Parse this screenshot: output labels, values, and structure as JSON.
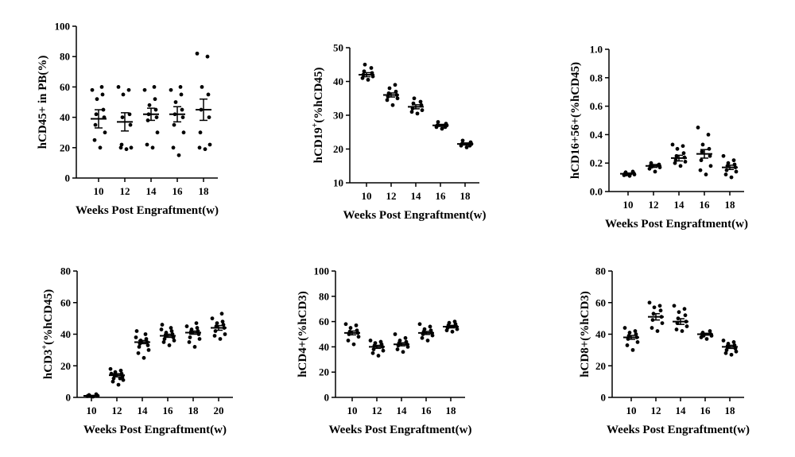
{
  "chart_data": [
    {
      "type": "scatter",
      "ylabel": "hCD45+ in PB(%)",
      "xlabel": "Weeks Post Engraftment(w)",
      "ylim": [
        0,
        100
      ],
      "yticks": [
        0,
        20,
        40,
        60,
        80,
        100
      ],
      "categories": [
        "10",
        "12",
        "14",
        "16",
        "18"
      ],
      "groups": [
        {
          "category": "10",
          "mean": 39,
          "sem": 6,
          "points": [
            20,
            25,
            30,
            35,
            40,
            42,
            45,
            52,
            55,
            58,
            60
          ]
        },
        {
          "category": "12",
          "mean": 37,
          "sem": 6,
          "points": [
            19,
            20,
            20,
            22,
            35,
            40,
            42,
            55,
            58,
            60
          ]
        },
        {
          "category": "14",
          "mean": 42,
          "sem": 4,
          "points": [
            20,
            22,
            30,
            38,
            40,
            42,
            45,
            48,
            52,
            58,
            60
          ]
        },
        {
          "category": "16",
          "mean": 42,
          "sem": 5,
          "points": [
            15,
            20,
            30,
            35,
            40,
            42,
            45,
            50,
            55,
            58,
            60
          ]
        },
        {
          "category": "18",
          "mean": 45,
          "sem": 7,
          "points": [
            19,
            20,
            22,
            30,
            40,
            45,
            55,
            60,
            80,
            82
          ]
        }
      ]
    },
    {
      "type": "scatter",
      "ylabel_main": "hCD19",
      "ylabel_sup": "+",
      "ylabel_rest": "(%hCD45)",
      "xlabel": "Weeks Post Engraftment(w)",
      "ylim": [
        10,
        50
      ],
      "yticks": [
        10,
        20,
        30,
        40,
        50
      ],
      "categories": [
        "10",
        "12",
        "14",
        "16",
        "18"
      ],
      "groups": [
        {
          "category": "10",
          "mean": 42,
          "sem": 0.6,
          "points": [
            40.5,
            41,
            41.5,
            42,
            42.5,
            43,
            44,
            45
          ]
        },
        {
          "category": "12",
          "mean": 36,
          "sem": 0.6,
          "points": [
            33,
            34.5,
            35,
            35.5,
            36,
            36.5,
            37,
            38,
            39
          ]
        },
        {
          "category": "14",
          "mean": 32.5,
          "sem": 0.6,
          "points": [
            30.5,
            31,
            31.5,
            32,
            33,
            33.5,
            34,
            35
          ]
        },
        {
          "category": "16",
          "mean": 27,
          "sem": 0.3,
          "points": [
            26,
            26.5,
            27,
            27,
            27.5,
            28,
            26.5
          ]
        },
        {
          "category": "18",
          "mean": 21.5,
          "sem": 0.3,
          "points": [
            20.5,
            21,
            21.5,
            21.5,
            22,
            22.5,
            21
          ]
        }
      ]
    },
    {
      "type": "scatter",
      "ylabel": "hCD16+56+(%hCD45)",
      "xlabel": "Weeks Post Engraftment(w)",
      "ylim": [
        0,
        1.0
      ],
      "yticks": [
        0.0,
        0.2,
        0.4,
        0.6,
        0.8,
        1.0
      ],
      "ytick_labels": [
        "0.0",
        "0.2",
        "0.4",
        "0.6",
        "0.8",
        "1.0"
      ],
      "categories": [
        "10",
        "12",
        "14",
        "16",
        "18"
      ],
      "groups": [
        {
          "category": "10",
          "mean": 0.125,
          "sem": 0.005,
          "points": [
            0.11,
            0.115,
            0.12,
            0.125,
            0.13,
            0.135,
            0.14,
            0.12
          ]
        },
        {
          "category": "12",
          "mean": 0.18,
          "sem": 0.01,
          "points": [
            0.14,
            0.16,
            0.17,
            0.18,
            0.19,
            0.2,
            0.185,
            0.175
          ]
        },
        {
          "category": "14",
          "mean": 0.235,
          "sem": 0.02,
          "points": [
            0.18,
            0.2,
            0.21,
            0.22,
            0.24,
            0.25,
            0.27,
            0.3,
            0.32,
            0.33
          ]
        },
        {
          "category": "16",
          "mean": 0.265,
          "sem": 0.03,
          "points": [
            0.12,
            0.15,
            0.18,
            0.22,
            0.25,
            0.28,
            0.3,
            0.33,
            0.4,
            0.45
          ]
        },
        {
          "category": "18",
          "mean": 0.17,
          "sem": 0.015,
          "points": [
            0.1,
            0.12,
            0.14,
            0.15,
            0.17,
            0.18,
            0.19,
            0.2,
            0.22,
            0.25
          ]
        }
      ]
    },
    {
      "type": "scatter",
      "ylabel_main": "hCD3",
      "ylabel_sup": "+",
      "ylabel_rest": "(%hCD45)",
      "xlabel": "Weeks Post Engraftment(w)",
      "ylim": [
        0,
        80
      ],
      "yticks": [
        0,
        20,
        40,
        60,
        80
      ],
      "categories": [
        "10",
        "12",
        "14",
        "16",
        "18",
        "20"
      ],
      "groups": [
        {
          "category": "10",
          "mean": 1,
          "sem": 0.2,
          "points": [
            0.5,
            0.8,
            1,
            1,
            1.2,
            1.5,
            2,
            1
          ]
        },
        {
          "category": "12",
          "mean": 14,
          "sem": 1,
          "points": [
            8,
            10,
            11,
            12,
            13,
            14,
            15,
            16,
            17,
            18,
            12,
            15
          ]
        },
        {
          "category": "14",
          "mean": 35,
          "sem": 1,
          "points": [
            25,
            28,
            30,
            32,
            33,
            34,
            35,
            36,
            37,
            38,
            40,
            42
          ]
        },
        {
          "category": "16",
          "mean": 39,
          "sem": 1,
          "points": [
            33,
            35,
            36,
            37,
            38,
            39,
            40,
            41,
            42,
            43,
            44,
            46
          ]
        },
        {
          "category": "18",
          "mean": 41,
          "sem": 1,
          "points": [
            32,
            35,
            37,
            38,
            40,
            41,
            42,
            43,
            44,
            45,
            47
          ]
        },
        {
          "category": "20",
          "mean": 44,
          "sem": 1.5,
          "points": [
            37,
            39,
            40,
            42,
            44,
            45,
            46,
            47,
            48,
            50,
            53
          ]
        }
      ]
    },
    {
      "type": "scatter",
      "ylabel": "hCD4+(%hCD3)",
      "xlabel": "Weeks Post Engraftment(w)",
      "ylim": [
        0,
        100
      ],
      "yticks": [
        0,
        20,
        40,
        60,
        80,
        100
      ],
      "categories": [
        "10",
        "12",
        "14",
        "16",
        "18"
      ],
      "groups": [
        {
          "category": "10",
          "mean": 51,
          "sem": 1.5,
          "points": [
            42,
            45,
            48,
            50,
            51,
            52,
            53,
            55,
            57,
            58
          ]
        },
        {
          "category": "12",
          "mean": 40,
          "sem": 1.2,
          "points": [
            33,
            35,
            37,
            38,
            40,
            41,
            42,
            43,
            44,
            45
          ]
        },
        {
          "category": "14",
          "mean": 42,
          "sem": 1.2,
          "points": [
            36,
            38,
            40,
            41,
            42,
            43,
            44,
            45,
            47,
            50
          ]
        },
        {
          "category": "16",
          "mean": 51,
          "sem": 1.2,
          "points": [
            45,
            47,
            49,
            50,
            51,
            52,
            53,
            54,
            56,
            58
          ]
        },
        {
          "category": "18",
          "mean": 56,
          "sem": 1,
          "points": [
            52,
            53,
            54,
            55,
            56,
            57,
            58,
            59,
            60
          ]
        }
      ]
    },
    {
      "type": "scatter",
      "ylabel": "hCD8+(%hCD3)",
      "xlabel": "Weeks Post Engraftment(w)",
      "ylim": [
        0,
        80
      ],
      "yticks": [
        0,
        20,
        40,
        60,
        80
      ],
      "categories": [
        "10",
        "12",
        "14",
        "16",
        "18"
      ],
      "groups": [
        {
          "category": "10",
          "mean": 38,
          "sem": 1.2,
          "points": [
            30,
            33,
            35,
            37,
            38,
            39,
            40,
            41,
            42,
            44
          ]
        },
        {
          "category": "12",
          "mean": 51,
          "sem": 2,
          "points": [
            42,
            44,
            47,
            49,
            51,
            53,
            55,
            57,
            58,
            60
          ]
        },
        {
          "category": "14",
          "mean": 48,
          "sem": 1.8,
          "points": [
            42,
            43,
            45,
            47,
            48,
            50,
            52,
            54,
            56,
            58
          ]
        },
        {
          "category": "16",
          "mean": 40,
          "sem": 0.6,
          "points": [
            37,
            38,
            39,
            40,
            40,
            41,
            42,
            39
          ]
        },
        {
          "category": "18",
          "mean": 32,
          "sem": 1,
          "points": [
            27,
            28,
            29,
            30,
            31,
            32,
            33,
            34,
            35,
            36
          ]
        }
      ]
    }
  ]
}
